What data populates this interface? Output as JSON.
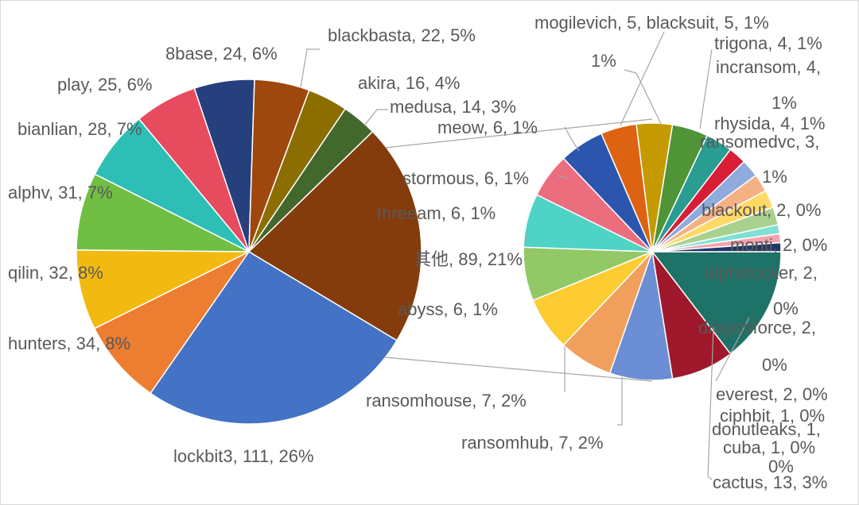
{
  "chart_data": {
    "type": "pie",
    "subtype": "pie-of-pie",
    "main_pie": {
      "slices": [
        {
          "label": "lockbit3, 111, 26%",
          "value": 111,
          "color": "#4472C4"
        },
        {
          "label": "hunters, 34, 8%",
          "value": 34,
          "color": "#ED7D31"
        },
        {
          "label": "qilin, 32, 8%",
          "value": 32,
          "color": "#F2BA11"
        },
        {
          "label": "alphv, 31, 7%",
          "value": 31,
          "color": "#70BE44"
        },
        {
          "label": "bianlian, 28, 7%",
          "value": 28,
          "color": "#2DBFB5"
        },
        {
          "label": "play, 25, 6%",
          "value": 25,
          "color": "#E64B5E"
        },
        {
          "label": "8base, 24, 6%",
          "value": 24,
          "color": "#25407D"
        },
        {
          "label": "blackbasta, 22, 5%",
          "value": 22,
          "color": "#9E480E"
        },
        {
          "label": "akira, 16, 4%",
          "value": 16,
          "color": "#8C6D00"
        },
        {
          "label": "medusa, 14, 3%",
          "value": 14,
          "color": "#43682B"
        },
        {
          "label": "其他, 89, 21%",
          "value": 89,
          "color": "#843C0C"
        }
      ]
    },
    "secondary_pie": {
      "total_label": "其他, 89, 21%",
      "slices": [
        {
          "label": "cactus, 13, 3%",
          "value": 13,
          "color": "#1F7268"
        },
        {
          "label": "ransomhub, 7, 2%",
          "value": 7,
          "color": "#A0182B"
        },
        {
          "label": "ransomhouse, 7, 2%",
          "value": 7,
          "color": "#6C8ED4"
        },
        {
          "label": "abyss, 6, 1%",
          "value": 6,
          "color": "#F0A05C"
        },
        {
          "label": "threeam, 6, 1%",
          "value": 6,
          "color": "#FCCC32"
        },
        {
          "label": "stormous, 6, 1%",
          "value": 6,
          "color": "#92C966"
        },
        {
          "label": "meow, 6, 1%",
          "value": 6,
          "color": "#4FD3C6"
        },
        {
          "label": "mogilevich, 5, 1%",
          "value": 5,
          "color": "#EB6E7E"
        },
        {
          "label": "blacksuit, 5, 1%",
          "value": 5,
          "color": "#2C56AE"
        },
        {
          "label": "trigona, 4, 1%",
          "value": 4,
          "color": "#DD6212"
        },
        {
          "label": "incransom, 4, 1%",
          "value": 4,
          "color": "#C49A00"
        },
        {
          "label": "rhysida, 4, 1%",
          "value": 4,
          "color": "#4F9436"
        },
        {
          "label": "ransomedvc, 3, 1%",
          "value": 3,
          "color": "#2A9D92"
        },
        {
          "label": "blackout, 2, 0%",
          "value": 2,
          "color": "#D81E36"
        },
        {
          "label": "monti, 2, 0%",
          "value": 2,
          "color": "#8FAADC"
        },
        {
          "label": "alphalocker, 2, 0%",
          "value": 2,
          "color": "#F4B183"
        },
        {
          "label": "dragonforce, 2, 0%",
          "value": 2,
          "color": "#FFD966"
        },
        {
          "label": "everest, 2, 0%",
          "value": 2,
          "color": "#A9D18E"
        },
        {
          "label": "ciphbit, 1, 0%",
          "value": 1,
          "color": "#7FE0D6"
        },
        {
          "label": "donutleaks, 1, 0%",
          "value": 1,
          "color": "#F4A3AE"
        },
        {
          "label": "cuba, 1, 0%",
          "value": 1,
          "color": "#203864"
        }
      ]
    },
    "labels": {
      "lockbit3": "lockbit3, 111, 26%",
      "hunters": "hunters, 34, 8%",
      "qilin": "qilin, 32, 8%",
      "alphv": "alphv, 31, 7%",
      "bianlian": "bianlian, 28, 7%",
      "play": "play, 25, 6%",
      "base8": "8base, 24, 6%",
      "blackbasta": "blackbasta, 22, 5%",
      "akira": "akira, 16, 4%",
      "medusa": "medusa, 14, 3%",
      "other": "其他, 89, 21%",
      "meow": "meow, 6, 1%",
      "stormous": "stormous, 6, 1%",
      "threeam": "threeam, 6, 1%",
      "abyss": "abyss, 6, 1%",
      "ransomhouse": "ransomhouse, 7, 2%",
      "ransomhub": "ransomhub, 7, 2%",
      "mogilevich_blacksuit": "mogilevich, 5, blacksuit, 5, 1%",
      "one_pct_a": "1%",
      "trigona": "trigona, 4, 1%",
      "incransom": "incransom, 4,",
      "one_pct_b": "1%",
      "rhysida": "rhysida, 4, 1%",
      "ransomedvc": "ransomedvc, 3,",
      "one_pct_c": "1%",
      "blackout": "blackout, 2, 0%",
      "monti": "monti, 2, 0%",
      "alphalocker": "alphalocker, 2,",
      "zero_a": "0%",
      "dragonforce": "dragonforce, 2,",
      "zero_b": "0%",
      "everest": "everest, 2, 0%",
      "ciphbit": "ciphbit, 1, 0%",
      "donutleaks": "donutleaks, 1,",
      "cuba": "cuba, 1, 0%",
      "zero_c": "0%",
      "cactus": "cactus, 13, 3%"
    }
  }
}
